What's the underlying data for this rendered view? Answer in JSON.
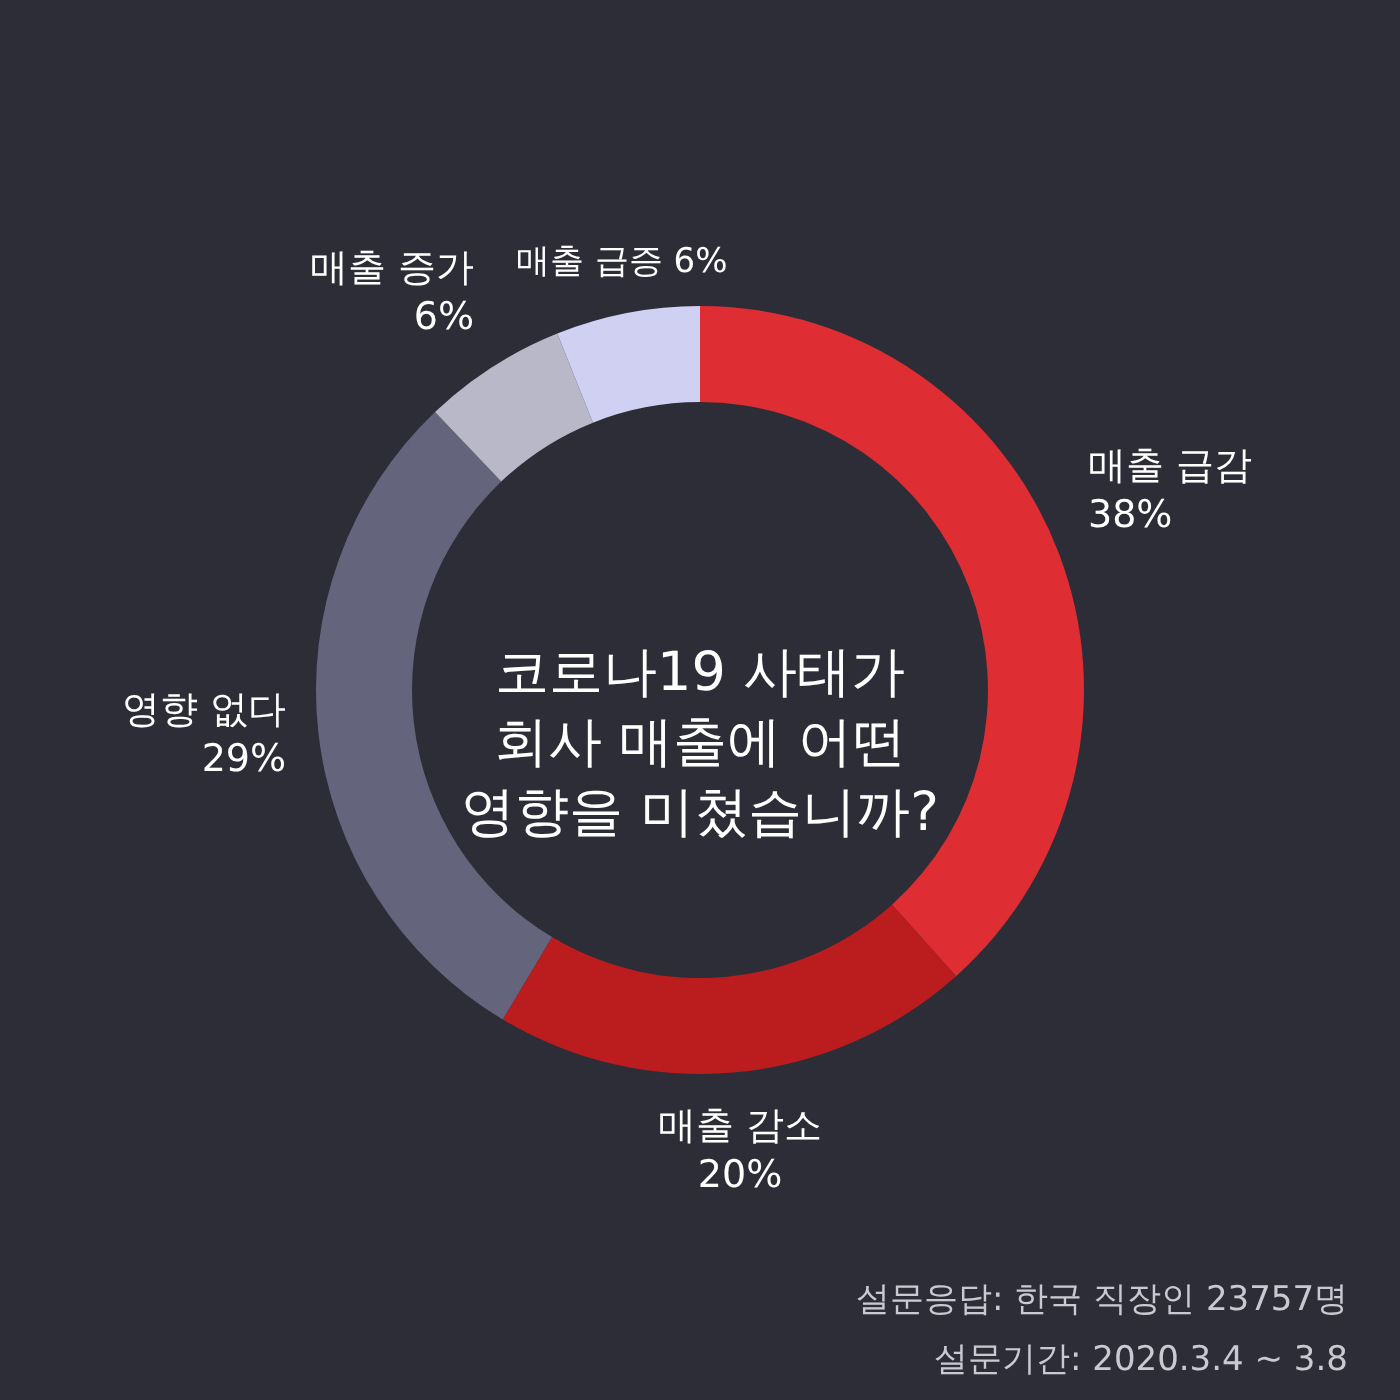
{
  "chart_data": {
    "type": "donut",
    "title": "코로나19 사태가\n회사 매출에 어떤\n영향을 미쳤습니까?",
    "categories": [
      "매출 급감",
      "매출 감소",
      "영향 없다",
      "매출 증가",
      "매출 급증"
    ],
    "values": [
      38,
      20,
      29,
      6,
      6
    ],
    "value_labels": [
      "38%",
      "20%",
      "29%",
      "6%",
      "6%"
    ],
    "colors": [
      "#df2e33",
      "#bb1c1d",
      "#64647c",
      "#b8b8c8",
      "#d0d0f2"
    ],
    "annotations": [
      "설문응답: 한국 직장인 23757명",
      "설문기간: 2020.3.4 ~ 3.8"
    ]
  }
}
